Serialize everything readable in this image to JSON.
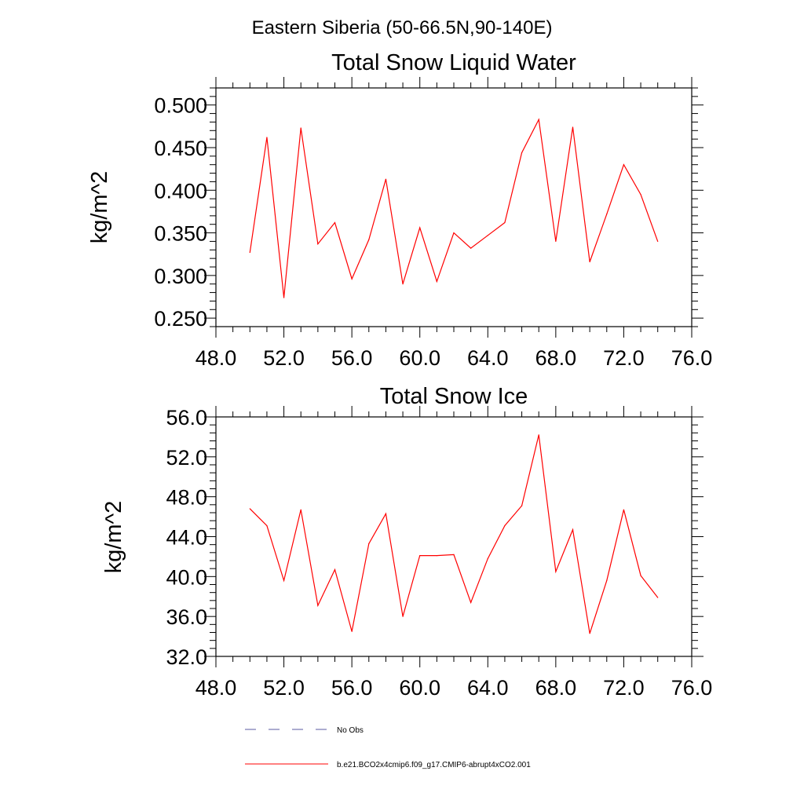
{
  "page_title": "Eastern Siberia (50-66.5N,90-140E)",
  "chart_data": [
    {
      "type": "line",
      "title": "Total Snow Liquid Water",
      "xlabel": "",
      "ylabel": "kg/m^2",
      "xlim": [
        48,
        76
      ],
      "ylim": [
        0.24,
        0.52
      ],
      "x_ticks": [
        "48.0",
        "52.0",
        "56.0",
        "60.0",
        "64.0",
        "68.0",
        "72.0",
        "76.0"
      ],
      "y_ticks": [
        "0.250",
        "0.300",
        "0.350",
        "0.400",
        "0.450",
        "0.500"
      ],
      "grid": false,
      "series": [
        {
          "color": "#ff0000",
          "x": [
            50,
            51,
            52,
            53,
            54,
            55,
            56,
            57,
            58,
            59,
            60,
            61,
            62,
            63,
            64,
            65,
            66,
            67,
            68,
            69,
            70,
            71,
            72,
            73,
            74
          ],
          "y": [
            0.327,
            0.462,
            0.274,
            0.473,
            0.337,
            0.362,
            0.296,
            0.342,
            0.413,
            0.29,
            0.356,
            0.293,
            0.35,
            0.332,
            0.347,
            0.362,
            0.444,
            0.483,
            0.34,
            0.474,
            0.316,
            0.372,
            0.43,
            0.395,
            0.34
          ]
        }
      ]
    },
    {
      "type": "line",
      "title": "Total Snow Ice",
      "xlabel": "",
      "ylabel": "kg/m^2",
      "xlim": [
        48,
        76
      ],
      "ylim": [
        32,
        56
      ],
      "x_ticks": [
        "48.0",
        "52.0",
        "56.0",
        "60.0",
        "64.0",
        "68.0",
        "72.0",
        "76.0"
      ],
      "y_ticks": [
        "32.0",
        "36.0",
        "40.0",
        "44.0",
        "48.0",
        "52.0",
        "56.0"
      ],
      "grid": false,
      "series": [
        {
          "color": "#ff0000",
          "x": [
            50,
            51,
            52,
            53,
            54,
            55,
            56,
            57,
            58,
            59,
            60,
            61,
            62,
            63,
            64,
            65,
            66,
            67,
            68,
            69,
            70,
            71,
            72,
            73,
            74
          ],
          "y": [
            46.8,
            45.1,
            39.6,
            46.7,
            37.1,
            40.7,
            34.5,
            43.3,
            46.3,
            36.0,
            42.1,
            42.1,
            42.2,
            37.4,
            41.8,
            45.1,
            47.1,
            54.2,
            40.5,
            44.7,
            34.3,
            39.6,
            46.7,
            40.1,
            37.9
          ]
        }
      ]
    }
  ],
  "legend": {
    "placement": "bottom-center",
    "entries": [
      {
        "label": "No Obs",
        "color": "#5a5aa0",
        "style": "dashed"
      },
      {
        "label": "b.e21.BCO2x4cmip6.f09_g17.CMIP6-abrupt4xCO2.001",
        "color": "#ff0000",
        "style": "solid"
      }
    ]
  }
}
